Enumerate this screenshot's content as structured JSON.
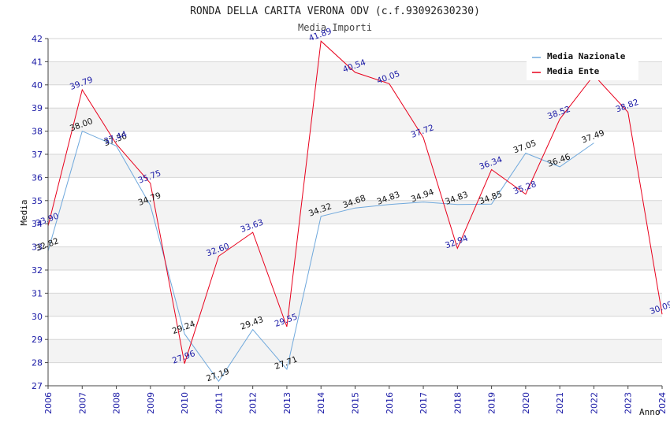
{
  "chart_data": {
    "type": "line",
    "title": "RONDA DELLA CARITA VERONA ODV (c.f.93092630230)",
    "subtitle": "Media Importi",
    "xlabel": "Anno",
    "ylabel": "Media",
    "x": [
      "2006",
      "2007",
      "2008",
      "2009",
      "2010",
      "2011",
      "2012",
      "2013",
      "2014",
      "2015",
      "2016",
      "2017",
      "2018",
      "2019",
      "2020",
      "2021",
      "2022",
      "2023",
      "2024"
    ],
    "ylim": [
      27,
      42
    ],
    "yticks": [
      27,
      28,
      29,
      30,
      31,
      32,
      33,
      34,
      35,
      36,
      37,
      38,
      39,
      40,
      41,
      42
    ],
    "grid": "horizontal-banded",
    "legend_position": "top-right",
    "series": [
      {
        "name": "Media Nazionale",
        "color": "#6fa8dc",
        "values": [
          32.82,
          38.0,
          37.36,
          34.79,
          29.24,
          27.19,
          29.43,
          27.71,
          34.32,
          34.68,
          34.83,
          34.94,
          34.83,
          34.85,
          37.05,
          36.46,
          37.49,
          null,
          null
        ],
        "labels": [
          "32.82",
          "38.00",
          "37.36",
          "34.79",
          "29.24",
          "27.19",
          "29.43",
          "27.71",
          "34.32",
          "34.68",
          "34.83",
          "34.94",
          "34.83",
          "34.85",
          "37.05",
          "36.46",
          "37.49",
          null,
          null
        ]
      },
      {
        "name": "Media Ente",
        "color": "#e8001c",
        "values": [
          33.9,
          39.79,
          37.44,
          35.75,
          27.96,
          32.6,
          33.63,
          29.55,
          41.89,
          40.54,
          40.05,
          37.72,
          32.94,
          36.34,
          35.28,
          38.52,
          40.42,
          38.82,
          30.09
        ],
        "labels": [
          "33.90",
          "39.79",
          "37.44",
          "35.75",
          "27.96",
          "32.60",
          "33.63",
          "29.55",
          "41.89",
          "40.54",
          "40.05",
          "37.72",
          "32.94",
          "36.34",
          "35.28",
          "38.52",
          null,
          "38.82",
          "30.09"
        ]
      }
    ]
  }
}
